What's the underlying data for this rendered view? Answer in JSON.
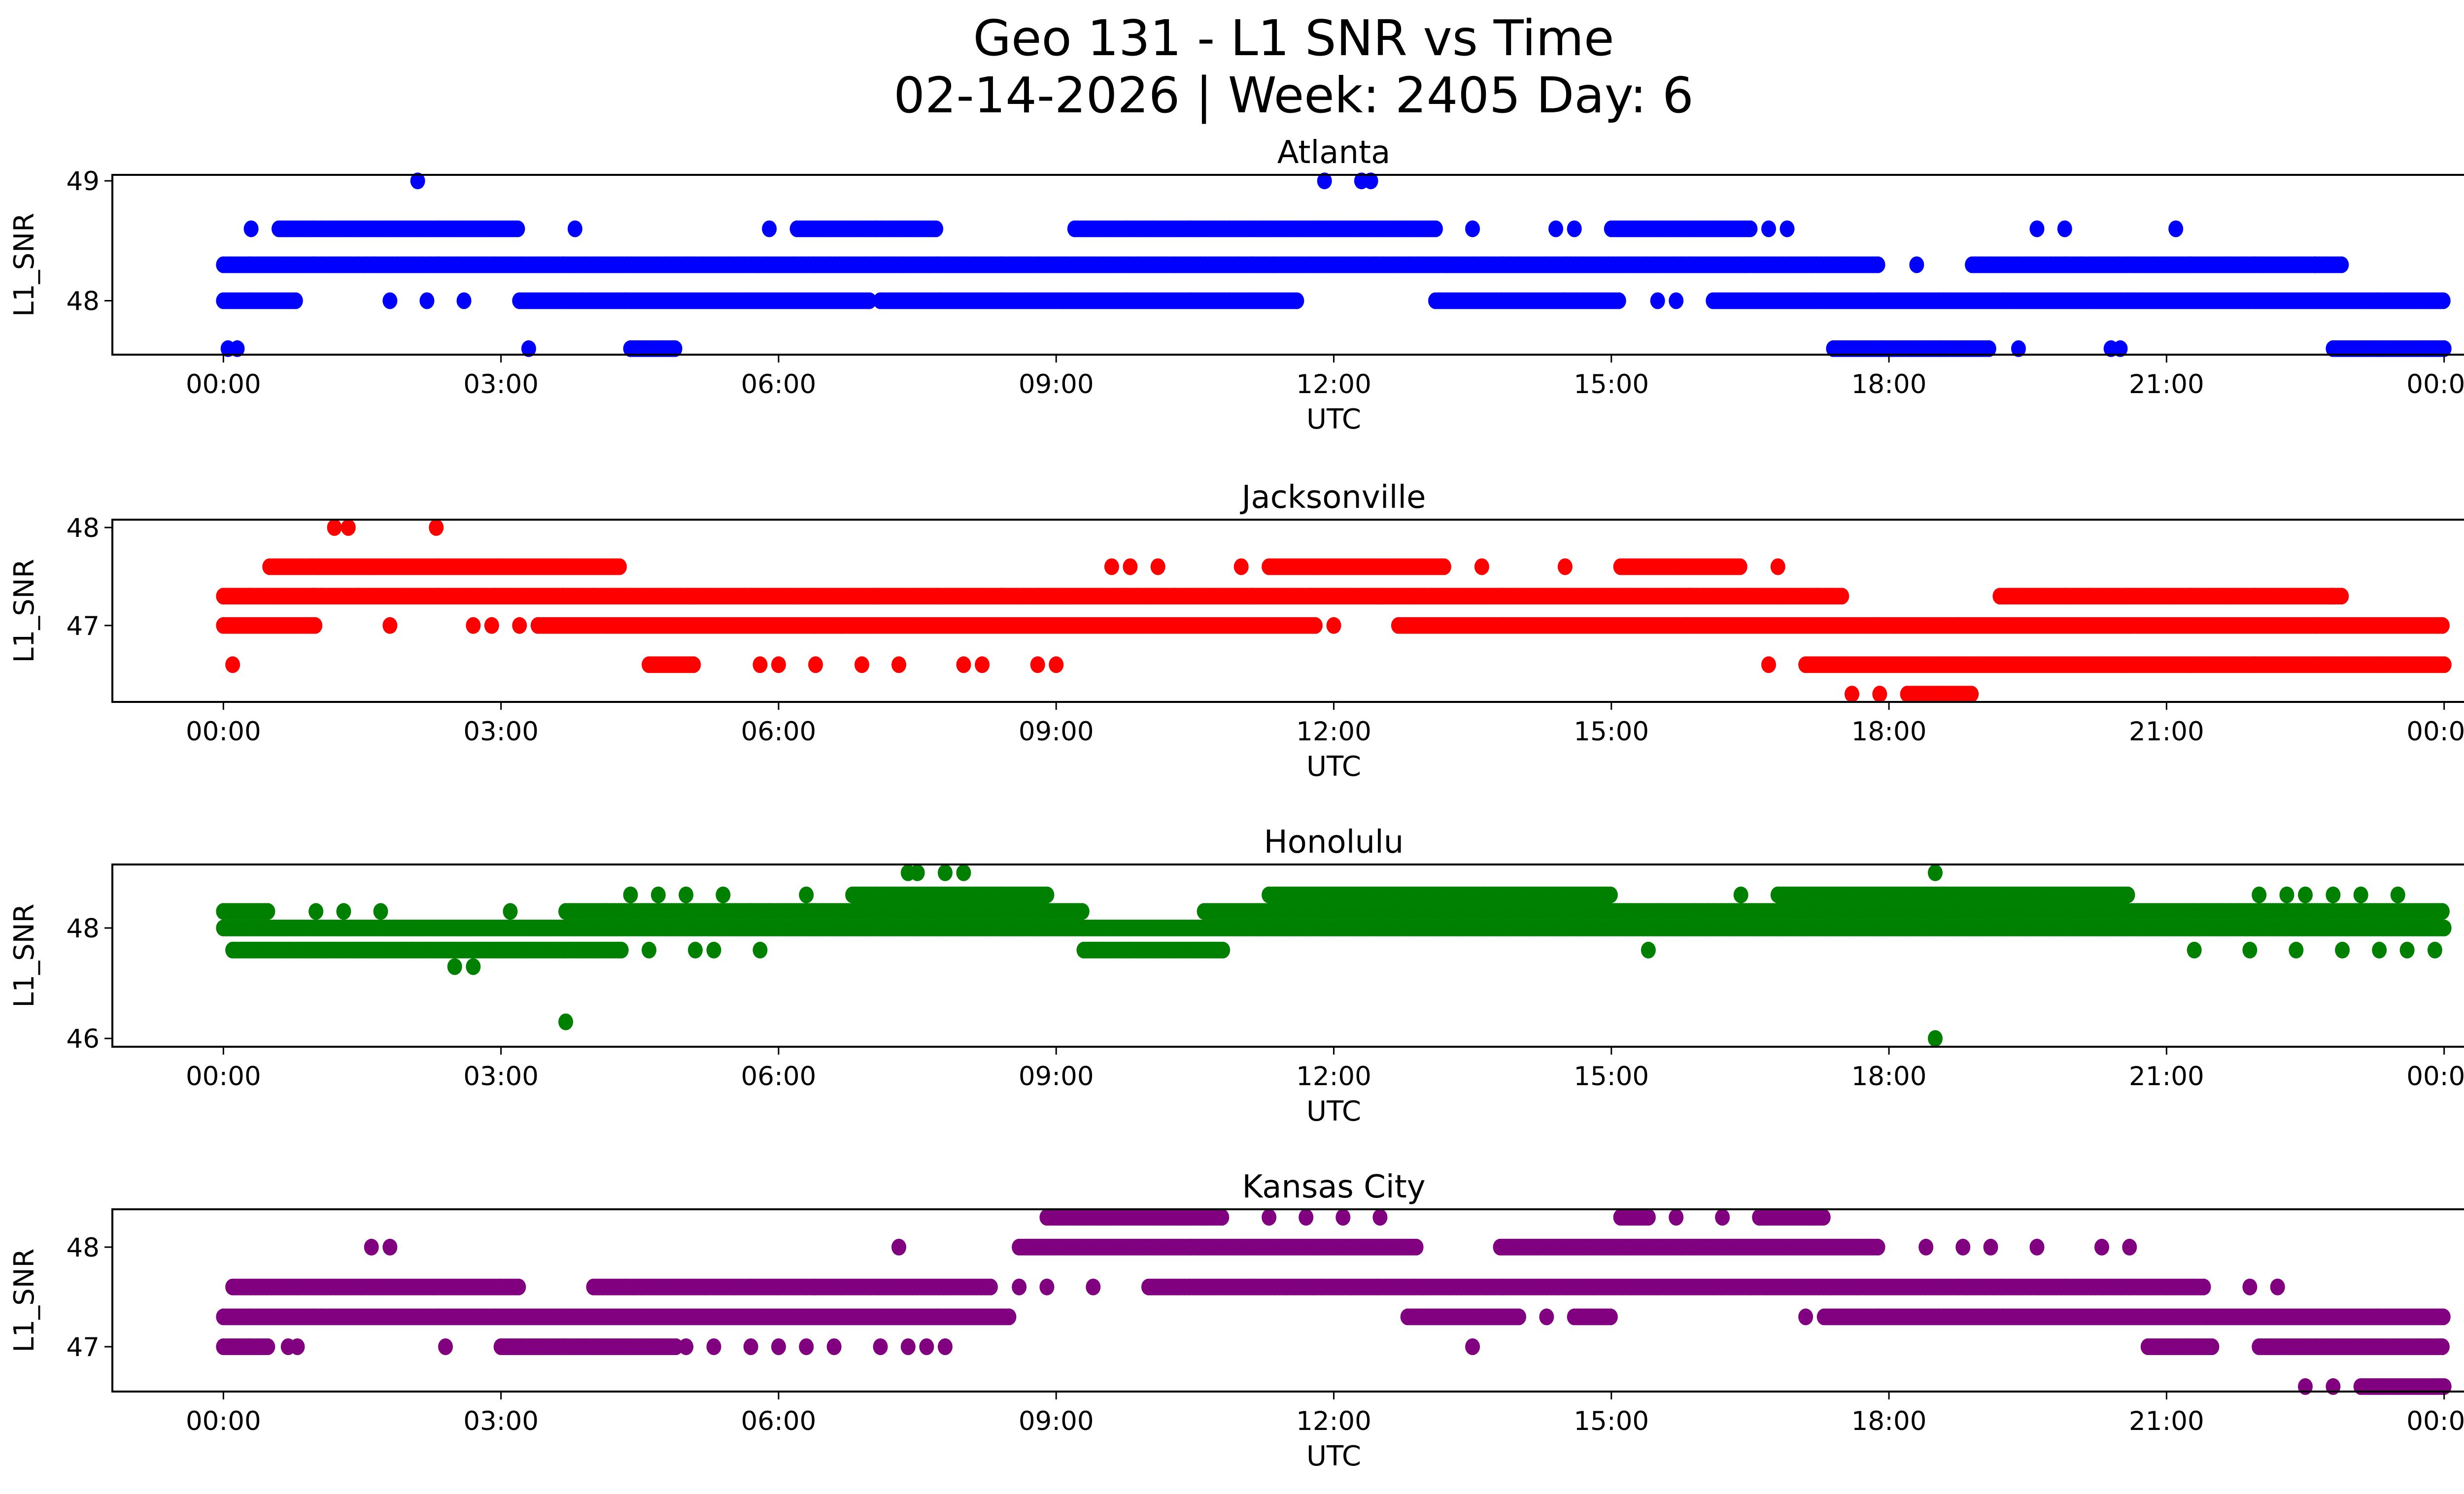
{
  "chart_data": {
    "type": "scatter",
    "title": "Geo 131 - L1 SNR vs Time",
    "subtitle": "02-14-2026 | Week: 2405 Day: 6",
    "x_ticks": [
      "00:00",
      "03:00",
      "06:00",
      "09:00",
      "12:00",
      "15:00",
      "18:00",
      "21:00",
      "00:00"
    ],
    "x_tick_hours": [
      0,
      3,
      6,
      9,
      12,
      15,
      18,
      21,
      24
    ],
    "xlim_hours": [
      -1.2,
      25.2
    ],
    "xlabel": "UTC",
    "ylabel": "L1_SNR",
    "note": "Points given as continuous runs [start_hour, end_hour] at each SNR level, plus isolated points [hour, value]",
    "panels": [
      {
        "name": "Atlanta",
        "color": "#0000ff",
        "ylim": [
          47.55,
          49.05
        ],
        "y_ticks": [
          48,
          49
        ],
        "runs": [
          {
            "value": 48.3,
            "segments": [
              [
                0,
                17.9
              ],
              [
                18.9,
                22.9
              ]
            ]
          },
          {
            "value": 48.0,
            "segments": [
              [
                0,
                0.8
              ],
              [
                3.2,
                7.0
              ],
              [
                7.1,
                11.6
              ],
              [
                13.1,
                15.1
              ],
              [
                16.1,
                24
              ]
            ]
          },
          {
            "value": 48.6,
            "segments": [
              [
                0.6,
                3.2
              ],
              [
                6.2,
                7.7
              ],
              [
                9.2,
                13.1
              ],
              [
                15.0,
                16.5
              ]
            ]
          },
          {
            "value": 47.6,
            "segments": [
              [
                4.4,
                4.9
              ],
              [
                17.4,
                19.1
              ],
              [
                22.8,
                24
              ]
            ]
          }
        ],
        "points": [
          [
            2.1,
            49.0
          ],
          [
            11.9,
            49.0
          ],
          [
            12.3,
            49.0
          ],
          [
            12.4,
            49.0
          ],
          [
            0.05,
            47.6
          ],
          [
            0.15,
            47.6
          ],
          [
            3.3,
            47.6
          ],
          [
            0.3,
            48.6
          ],
          [
            3.8,
            48.6
          ],
          [
            5.9,
            48.6
          ],
          [
            13.5,
            48.6
          ],
          [
            14.4,
            48.6
          ],
          [
            14.6,
            48.6
          ],
          [
            16.7,
            48.6
          ],
          [
            16.9,
            48.6
          ],
          [
            19.6,
            48.6
          ],
          [
            19.9,
            48.6
          ],
          [
            21.1,
            48.6
          ],
          [
            1.8,
            48.0
          ],
          [
            2.2,
            48.0
          ],
          [
            2.6,
            48.0
          ],
          [
            15.5,
            48.0
          ],
          [
            15.7,
            48.0
          ],
          [
            18.3,
            48.3
          ],
          [
            20.5,
            47.6
          ],
          [
            20.4,
            47.6
          ],
          [
            19.4,
            47.6
          ],
          [
            22.6,
            48.3
          ]
        ]
      },
      {
        "name": "Jacksonville",
        "color": "#ff0000",
        "ylim": [
          46.22,
          48.08
        ],
        "y_ticks": [
          47,
          48
        ],
        "runs": [
          {
            "value": 47.3,
            "segments": [
              [
                0,
                17.5
              ],
              [
                19.2,
                22.9
              ]
            ]
          },
          {
            "value": 47.0,
            "segments": [
              [
                0,
                1.0
              ],
              [
                3.4,
                11.8
              ],
              [
                12.7,
                24
              ]
            ]
          },
          {
            "value": 47.6,
            "segments": [
              [
                0.5,
                4.3
              ],
              [
                11.3,
                13.2
              ],
              [
                15.1,
                16.4
              ]
            ]
          },
          {
            "value": 46.6,
            "segments": [
              [
                4.6,
                5.1
              ],
              [
                17.1,
                24
              ]
            ]
          },
          {
            "value": 46.3,
            "segments": [
              [
                18.2,
                18.9
              ]
            ]
          }
        ],
        "points": [
          [
            1.2,
            48.0
          ],
          [
            1.35,
            48.0
          ],
          [
            2.3,
            48.0
          ],
          [
            0.1,
            46.6
          ],
          [
            1.8,
            47.0
          ],
          [
            2.7,
            47.0
          ],
          [
            2.9,
            47.0
          ],
          [
            3.2,
            47.0
          ],
          [
            5.8,
            46.6
          ],
          [
            6.0,
            46.6
          ],
          [
            6.4,
            46.6
          ],
          [
            6.9,
            46.6
          ],
          [
            7.3,
            46.6
          ],
          [
            8.0,
            46.6
          ],
          [
            8.2,
            46.6
          ],
          [
            8.8,
            46.6
          ],
          [
            9.0,
            46.6
          ],
          [
            9.6,
            47.6
          ],
          [
            9.8,
            47.6
          ],
          [
            10.1,
            47.6
          ],
          [
            11.0,
            47.6
          ],
          [
            13.6,
            47.6
          ],
          [
            14.5,
            47.6
          ],
          [
            16.8,
            47.6
          ],
          [
            12.0,
            47.0
          ],
          [
            16.7,
            46.6
          ],
          [
            17.6,
            46.3
          ],
          [
            17.9,
            46.3
          ],
          [
            22.8,
            47.3
          ]
        ]
      },
      {
        "name": "Honolulu",
        "color": "#008000",
        "ylim": [
          45.85,
          49.15
        ],
        "y_ticks": [
          46,
          48
        ],
        "runs": [
          {
            "value": 48.0,
            "segments": [
              [
                0,
                24
              ]
            ]
          },
          {
            "value": 48.3,
            "segments": [
              [
                0,
                0.5
              ],
              [
                3.7,
                9.3
              ],
              [
                10.6,
                24
              ]
            ]
          },
          {
            "value": 47.6,
            "segments": [
              [
                0.1,
                4.3
              ],
              [
                9.3,
                10.8
              ]
            ]
          },
          {
            "value": 48.6,
            "segments": [
              [
                6.8,
                8.9
              ],
              [
                11.3,
                15.0
              ],
              [
                16.8,
                20.6
              ]
            ]
          }
        ],
        "points": [
          [
            2.5,
            47.3
          ],
          [
            2.7,
            47.3
          ],
          [
            3.7,
            46.3
          ],
          [
            18.5,
            46.0
          ],
          [
            18.5,
            49.0
          ],
          [
            7.4,
            49.0
          ],
          [
            7.5,
            49.0
          ],
          [
            7.8,
            49.0
          ],
          [
            8.0,
            49.0
          ],
          [
            4.4,
            48.6
          ],
          [
            4.7,
            48.6
          ],
          [
            5.0,
            48.6
          ],
          [
            5.4,
            48.6
          ],
          [
            6.3,
            48.6
          ],
          [
            4.6,
            47.6
          ],
          [
            5.1,
            47.6
          ],
          [
            5.3,
            47.6
          ],
          [
            5.8,
            47.6
          ],
          [
            15.4,
            47.6
          ],
          [
            16.4,
            48.6
          ],
          [
            21.3,
            47.6
          ],
          [
            22.0,
            48.6
          ],
          [
            22.3,
            48.6
          ],
          [
            22.5,
            48.6
          ],
          [
            22.8,
            48.6
          ],
          [
            23.1,
            48.6
          ],
          [
            23.5,
            48.6
          ],
          [
            21.9,
            47.6
          ],
          [
            22.4,
            47.6
          ],
          [
            22.9,
            47.6
          ],
          [
            23.3,
            47.6
          ],
          [
            23.6,
            47.6
          ],
          [
            23.9,
            47.6
          ],
          [
            1.0,
            48.3
          ],
          [
            1.3,
            48.3
          ],
          [
            1.7,
            48.3
          ],
          [
            3.1,
            48.3
          ]
        ]
      },
      {
        "name": "Kansas City",
        "color": "#800080",
        "ylim": [
          46.55,
          48.38
        ],
        "y_ticks": [
          47,
          48
        ],
        "runs": [
          {
            "value": 47.3,
            "segments": [
              [
                0,
                8.5
              ],
              [
                12.8,
                14.0
              ],
              [
                14.6,
                15.0
              ],
              [
                17.3,
                24
              ]
            ]
          },
          {
            "value": 47.6,
            "segments": [
              [
                0.1,
                3.2
              ],
              [
                4.0,
                8.3
              ],
              [
                10.0,
                21.4
              ]
            ]
          },
          {
            "value": 47.0,
            "segments": [
              [
                0,
                0.5
              ],
              [
                3.0,
                4.9
              ],
              [
                20.8,
                21.5
              ],
              [
                22.0,
                24
              ]
            ]
          },
          {
            "value": 48.0,
            "segments": [
              [
                8.6,
                12.9
              ],
              [
                13.8,
                17.9
              ]
            ]
          },
          {
            "value": 48.3,
            "segments": [
              [
                8.9,
                10.8
              ],
              [
                15.1,
                15.4
              ],
              [
                16.6,
                17.3
              ]
            ]
          },
          {
            "value": 46.6,
            "segments": [
              [
                23.1,
                24
              ]
            ]
          }
        ],
        "points": [
          [
            1.6,
            48.0
          ],
          [
            1.8,
            48.0
          ],
          [
            7.3,
            48.0
          ],
          [
            2.4,
            47.0
          ],
          [
            0.7,
            47.0
          ],
          [
            0.8,
            47.0
          ],
          [
            5.0,
            47.0
          ],
          [
            5.3,
            47.0
          ],
          [
            5.7,
            47.0
          ],
          [
            6.0,
            47.0
          ],
          [
            6.3,
            47.0
          ],
          [
            6.6,
            47.0
          ],
          [
            7.1,
            47.0
          ],
          [
            7.4,
            47.0
          ],
          [
            7.6,
            47.0
          ],
          [
            7.8,
            47.0
          ],
          [
            8.6,
            47.6
          ],
          [
            8.9,
            47.6
          ],
          [
            9.4,
            47.6
          ],
          [
            11.3,
            48.3
          ],
          [
            11.7,
            48.3
          ],
          [
            12.1,
            48.3
          ],
          [
            12.5,
            48.3
          ],
          [
            15.7,
            48.3
          ],
          [
            16.2,
            48.3
          ],
          [
            13.5,
            47.0
          ],
          [
            21.9,
            47.6
          ],
          [
            22.2,
            47.6
          ],
          [
            22.5,
            46.6
          ],
          [
            22.8,
            46.6
          ],
          [
            18.4,
            48.0
          ],
          [
            18.8,
            48.0
          ],
          [
            19.1,
            48.0
          ],
          [
            19.6,
            48.0
          ],
          [
            20.3,
            48.0
          ],
          [
            20.6,
            48.0
          ],
          [
            14.3,
            47.3
          ],
          [
            17.1,
            47.3
          ]
        ]
      }
    ]
  }
}
